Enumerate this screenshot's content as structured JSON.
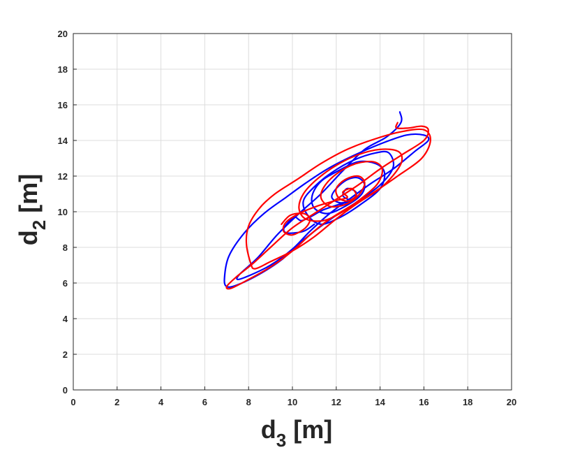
{
  "chart_data": {
    "type": "line",
    "title": "",
    "xlabel": {
      "prefix": "d",
      "sub": "3",
      "suffix": " [m]"
    },
    "ylabel": {
      "prefix": "d",
      "sub": "2",
      "suffix": " [m]"
    },
    "xlim": [
      0,
      20
    ],
    "ylim": [
      0,
      20
    ],
    "xticks": [
      "0",
      "2",
      "4",
      "6",
      "8",
      "10",
      "12",
      "14",
      "16",
      "18",
      "20"
    ],
    "yticks": [
      "0",
      "2",
      "4",
      "6",
      "8",
      "10",
      "12",
      "14",
      "16",
      "18",
      "20"
    ],
    "grid": true,
    "legend": false,
    "colors": {
      "blue": "#0000ff",
      "red": "#ff0000",
      "axis": "#262626",
      "grid": "#dcdcdc"
    },
    "series": [
      {
        "color": "#0000ff",
        "points": [
          [
            14.9,
            15.6
          ],
          [
            14.95,
            15.0
          ],
          [
            14.3,
            14.2
          ],
          [
            13.3,
            13.5
          ],
          [
            12.3,
            12.3
          ],
          [
            11.3,
            11.0
          ],
          [
            10.3,
            9.9
          ],
          [
            9.3,
            8.7
          ],
          [
            8.4,
            7.4
          ],
          [
            7.6,
            6.5
          ],
          [
            7.5,
            6.2
          ],
          [
            8.0,
            6.4
          ],
          [
            9.0,
            7.0
          ],
          [
            10.0,
            7.9
          ],
          [
            10.8,
            8.9
          ],
          [
            11.7,
            9.9
          ],
          [
            12.7,
            10.8
          ],
          [
            13.6,
            11.6
          ],
          [
            14.6,
            12.4
          ],
          [
            15.6,
            13.4
          ],
          [
            16.2,
            14.0
          ],
          [
            16.0,
            14.3
          ],
          [
            15.2,
            14.3
          ],
          [
            14.0,
            13.8
          ],
          [
            12.7,
            13.1
          ],
          [
            11.6,
            12.4
          ],
          [
            10.6,
            11.6
          ],
          [
            9.7,
            10.8
          ],
          [
            8.7,
            9.9
          ],
          [
            7.8,
            8.8
          ],
          [
            7.1,
            7.5
          ],
          [
            6.9,
            6.3
          ],
          [
            7.0,
            5.8
          ],
          [
            7.5,
            5.9
          ],
          [
            8.5,
            6.5
          ],
          [
            9.5,
            7.3
          ],
          [
            10.4,
            8.3
          ],
          [
            11.1,
            9.0
          ],
          [
            12.0,
            9.8
          ],
          [
            13.0,
            10.6
          ],
          [
            14.0,
            11.5
          ],
          [
            14.6,
            12.5
          ],
          [
            14.4,
            13.3
          ],
          [
            13.8,
            13.3
          ],
          [
            12.8,
            12.9
          ],
          [
            11.8,
            12.2
          ],
          [
            11.0,
            11.4
          ],
          [
            10.5,
            10.6
          ],
          [
            10.7,
            9.8
          ],
          [
            11.3,
            9.3
          ],
          [
            12.2,
            9.7
          ],
          [
            13.1,
            10.4
          ],
          [
            14.0,
            11.3
          ],
          [
            14.2,
            12.2
          ],
          [
            13.8,
            12.7
          ],
          [
            13.0,
            12.8
          ],
          [
            12.1,
            12.3
          ],
          [
            11.3,
            11.7
          ],
          [
            10.9,
            10.9
          ],
          [
            11.0,
            10.2
          ],
          [
            11.6,
            9.9
          ],
          [
            12.4,
            10.3
          ],
          [
            13.1,
            10.9
          ],
          [
            13.3,
            11.5
          ],
          [
            13.0,
            11.9
          ],
          [
            12.5,
            11.8
          ],
          [
            12.0,
            11.3
          ],
          [
            11.8,
            10.8
          ],
          [
            12.2,
            10.5
          ],
          [
            12.8,
            10.7
          ],
          [
            12.9,
            11.1
          ],
          [
            12.5,
            11.3
          ],
          [
            12.3,
            10.9
          ],
          [
            12.6,
            10.6
          ],
          [
            12.1,
            10.4
          ],
          [
            11.4,
            10.1
          ],
          [
            10.8,
            9.7
          ],
          [
            10.4,
            9.5
          ],
          [
            10.1,
            9.7
          ],
          [
            9.8,
            9.4
          ],
          [
            9.6,
            9.0
          ],
          [
            9.8,
            8.8
          ],
          [
            10.5,
            8.9
          ],
          [
            11.0,
            9.3
          ]
        ]
      },
      {
        "color": "#ff0000",
        "points": [
          [
            14.8,
            15.0
          ],
          [
            14.75,
            14.7
          ],
          [
            15.3,
            14.7
          ],
          [
            15.9,
            14.8
          ],
          [
            16.2,
            14.6
          ],
          [
            16.0,
            14.0
          ],
          [
            15.0,
            13.2
          ],
          [
            14.0,
            12.4
          ],
          [
            13.0,
            11.5
          ],
          [
            12.0,
            10.7
          ],
          [
            11.0,
            9.9
          ],
          [
            10.0,
            9.1
          ],
          [
            9.0,
            8.0
          ],
          [
            8.2,
            7.1
          ],
          [
            7.4,
            6.3
          ],
          [
            7.0,
            5.8
          ],
          [
            7.2,
            5.7
          ],
          [
            8.0,
            6.2
          ],
          [
            9.0,
            6.9
          ],
          [
            10.0,
            7.8
          ],
          [
            10.8,
            8.7
          ],
          [
            11.6,
            9.5
          ],
          [
            12.5,
            10.2
          ],
          [
            13.6,
            11.0
          ],
          [
            14.8,
            12.0
          ],
          [
            15.9,
            13.0
          ],
          [
            16.3,
            14.0
          ],
          [
            16.0,
            14.6
          ],
          [
            15.0,
            14.5
          ],
          [
            13.8,
            14.1
          ],
          [
            12.5,
            13.5
          ],
          [
            11.3,
            12.7
          ],
          [
            10.2,
            11.8
          ],
          [
            9.2,
            11.0
          ],
          [
            8.5,
            10.2
          ],
          [
            8.0,
            9.2
          ],
          [
            7.9,
            8.2
          ],
          [
            8.1,
            7.1
          ],
          [
            8.3,
            6.8
          ],
          [
            9.0,
            7.2
          ],
          [
            10.0,
            7.8
          ],
          [
            11.0,
            8.6
          ],
          [
            12.0,
            9.6
          ],
          [
            13.0,
            10.5
          ],
          [
            14.0,
            11.3
          ],
          [
            14.7,
            12.2
          ],
          [
            15.0,
            12.9
          ],
          [
            14.8,
            13.4
          ],
          [
            14.0,
            13.5
          ],
          [
            13.0,
            13.2
          ],
          [
            12.0,
            12.6
          ],
          [
            11.1,
            11.8
          ],
          [
            10.5,
            11.0
          ],
          [
            10.3,
            10.2
          ],
          [
            10.6,
            9.6
          ],
          [
            11.4,
            9.5
          ],
          [
            12.3,
            10.0
          ],
          [
            13.2,
            10.8
          ],
          [
            13.9,
            11.6
          ],
          [
            14.1,
            12.4
          ],
          [
            13.7,
            12.8
          ],
          [
            12.9,
            12.7
          ],
          [
            12.1,
            12.2
          ],
          [
            11.5,
            11.5
          ],
          [
            11.3,
            10.8
          ],
          [
            11.7,
            10.3
          ],
          [
            12.4,
            10.4
          ],
          [
            13.0,
            10.9
          ],
          [
            13.3,
            11.6
          ],
          [
            13.0,
            12.0
          ],
          [
            12.4,
            11.8
          ],
          [
            12.0,
            11.3
          ],
          [
            12.1,
            10.8
          ],
          [
            12.5,
            10.6
          ],
          [
            12.9,
            10.9
          ],
          [
            12.7,
            11.3
          ],
          [
            12.3,
            11.1
          ],
          [
            12.5,
            10.8
          ],
          [
            11.9,
            10.6
          ],
          [
            11.1,
            10.3
          ],
          [
            10.3,
            9.9
          ],
          [
            9.7,
            9.4
          ],
          [
            9.6,
            8.9
          ],
          [
            10.0,
            8.7
          ],
          [
            10.6,
            9.1
          ],
          [
            10.8,
            9.6
          ],
          [
            10.5,
            9.9
          ],
          [
            9.9,
            9.8
          ],
          [
            9.5,
            9.3
          ]
        ]
      }
    ]
  }
}
